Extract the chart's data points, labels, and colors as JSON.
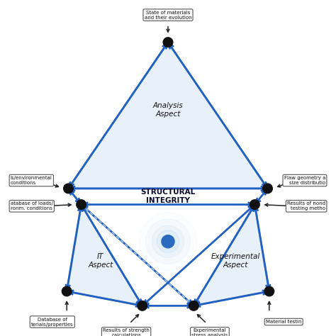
{
  "bg_color": "#ffffff",
  "triangle_fill": "#cce0f5",
  "triangle_edge": "#1a5fb4",
  "arrow_color": "#2060c0",
  "node_color": "#111111",
  "center_circle_color": "#2a6abf",
  "text_color": "#111111",
  "center_label": "STRUCTURAL\nINTEGRITY",
  "aspect_labels": {
    "top": "Analysis\nAspect",
    "bottom_left": "IT\nAspect",
    "bottom_right": "Experimental\nAspect"
  },
  "boxes": {
    "top_center": "State of materials\nand their evolution",
    "left_upper": "ls/environmental\nconditions",
    "left_lower": "atabase of loads/\nronm. conditions",
    "right_upper": "Flaw geometry a\nsize distributio",
    "right_lower": "Results of nond\ntesting metho",
    "bottom_left": "Database of\nterials/properties",
    "bottom_center_left": "Results of strength\ncalculations",
    "bottom_center_right": "Experimental\nstress analysis",
    "bottom_right": "Material testin"
  }
}
